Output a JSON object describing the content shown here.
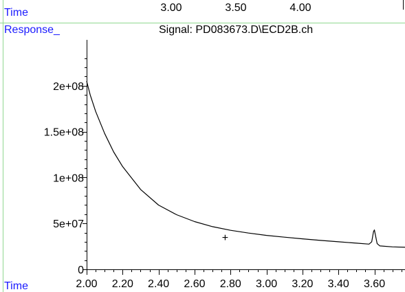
{
  "top_strip": {
    "x_label": "Time",
    "tick_labels": [
      "3.00",
      "3.50",
      "4.00"
    ]
  },
  "signal_title": "Signal: PD083673.D\\ECD2B.ch",
  "colors": {
    "label_blue": "#1a1aff",
    "frame_green": "#8fd88f",
    "trace": "#000000",
    "background": "#ffffff"
  },
  "chart_data": {
    "type": "line",
    "title": "Signal: PD083673.D\\ECD2B.ch",
    "xlabel": "Time",
    "ylabel": "Response_",
    "xlim": [
      2.0,
      3.77
    ],
    "ylim": [
      0,
      250000000.0
    ],
    "x_ticks": [
      2.0,
      2.2,
      2.4,
      2.6,
      2.8,
      3.0,
      3.2,
      3.4,
      3.6
    ],
    "x_tick_labels": [
      "2.00",
      "2.20",
      "2.40",
      "2.60",
      "2.80",
      "3.00",
      "3.20",
      "3.40",
      "3.60"
    ],
    "y_ticks": [
      0,
      50000000.0,
      100000000.0,
      150000000.0,
      200000000.0
    ],
    "y_tick_labels": [
      "0",
      "5e+07",
      "1e+08",
      "1.5e+08",
      "2e+08"
    ],
    "series": [
      {
        "x": [
          2.0,
          2.02,
          2.05,
          2.1,
          2.15,
          2.2,
          2.3,
          2.4,
          2.5,
          2.6,
          2.7,
          2.8,
          2.9,
          3.0,
          3.1,
          3.2,
          3.3,
          3.4,
          3.5,
          3.57,
          3.585,
          3.595,
          3.6,
          3.605,
          3.615,
          3.63,
          3.7,
          3.77
        ],
        "y": [
          205000000.0,
          190000000.0,
          172000000.0,
          148000000.0,
          128000000.0,
          112000000.0,
          87000000.0,
          70000000.0,
          59500000.0,
          52000000.0,
          46500000.0,
          42500000.0,
          39500000.0,
          37000000.0,
          35000000.0,
          33200000.0,
          31500000.0,
          30000000.0,
          28500000.0,
          27500000.0,
          30000000.0,
          41000000.0,
          43000000.0,
          38000000.0,
          28000000.0,
          25500000.0,
          24500000.0,
          24000000.0
        ]
      }
    ],
    "annotations": [
      {
        "text": "+",
        "x": 2.77,
        "y": 35000000.0
      }
    ],
    "grid": false,
    "legend": "none"
  }
}
